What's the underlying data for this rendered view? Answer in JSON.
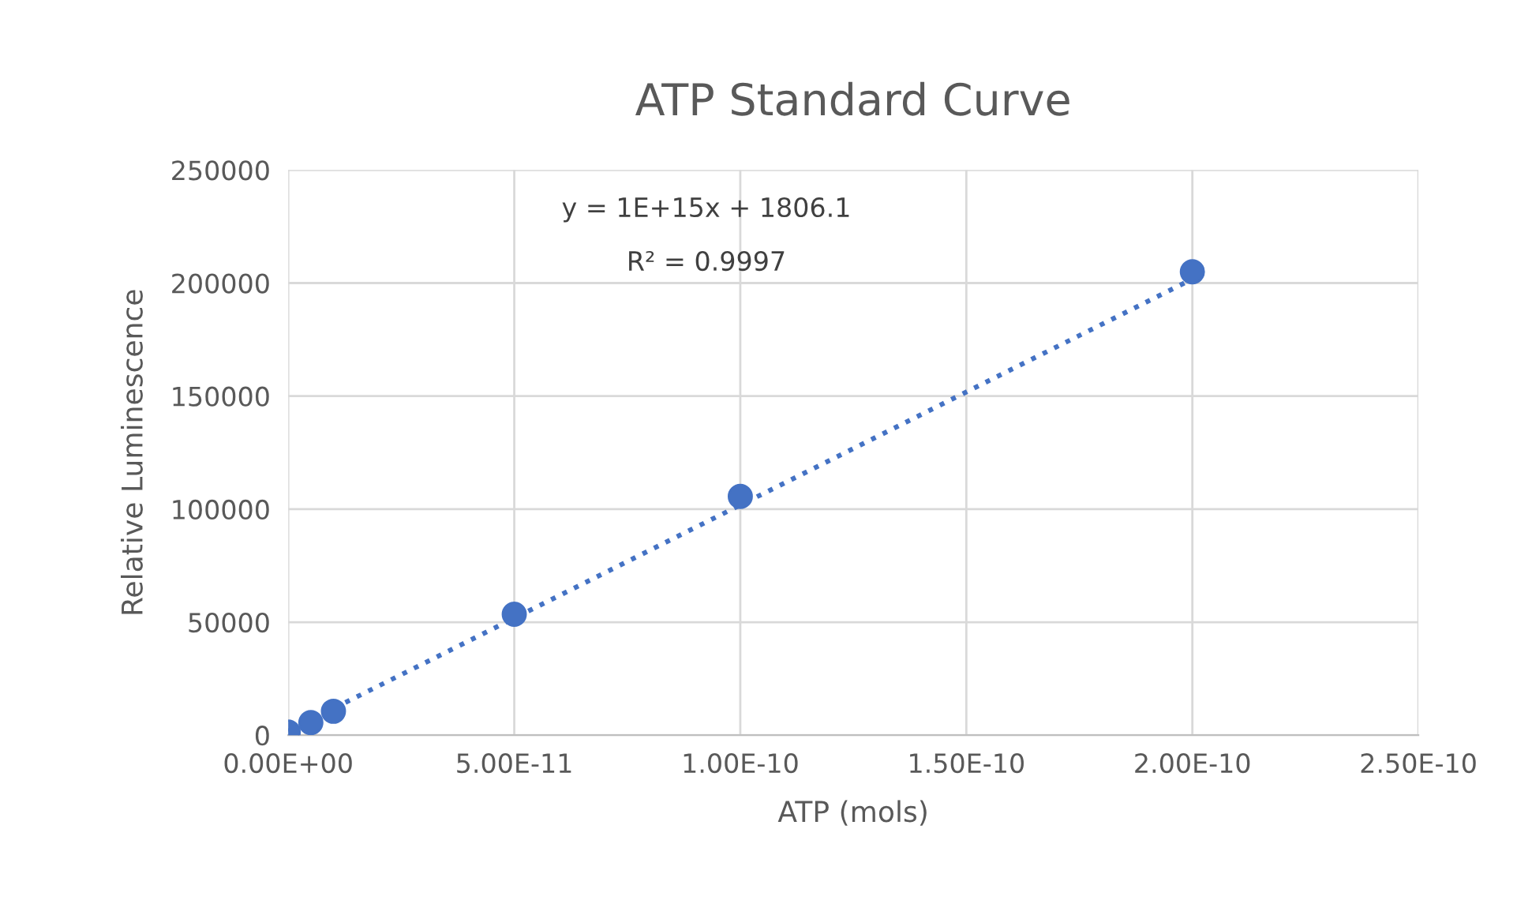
{
  "chart_data": {
    "type": "scatter",
    "title": "ATP Standard Curve",
    "xlabel": "ATP (mols)",
    "ylabel": "Relative Luminescence",
    "annotations": [
      "y = 1E+15x + 1806.1",
      "R² = 0.9997"
    ],
    "x": [
      0,
      5e-12,
      1e-11,
      5e-11,
      1e-10,
      2e-10
    ],
    "series": [
      {
        "color": "#4472c4",
        "values": [
          1400,
          5600,
          10600,
          53500,
          105600,
          205000
        ]
      },
      {
        "type": "line",
        "line_style": "dotted",
        "marker": "none",
        "color": "#4472c4",
        "x": [
          0,
          2e-10
        ],
        "values": [
          1800,
          201800
        ]
      }
    ],
    "marker": "circle",
    "xlim": [
      0,
      2.5e-10
    ],
    "xticks": [
      {
        "value": 0,
        "label": "0.00E+00"
      },
      {
        "value": 5e-11,
        "label": "5.00E-11"
      },
      {
        "value": 1e-10,
        "label": "1.00E-10"
      },
      {
        "value": 1.5e-10,
        "label": "1.50E-10"
      },
      {
        "value": 2e-10,
        "label": "2.00E-10"
      },
      {
        "value": 2.5e-10,
        "label": "2.50E-10"
      }
    ],
    "ylim": [
      0,
      250000
    ],
    "yticks": [
      0,
      50000,
      100000,
      150000,
      200000,
      250000
    ],
    "grid": true
  }
}
